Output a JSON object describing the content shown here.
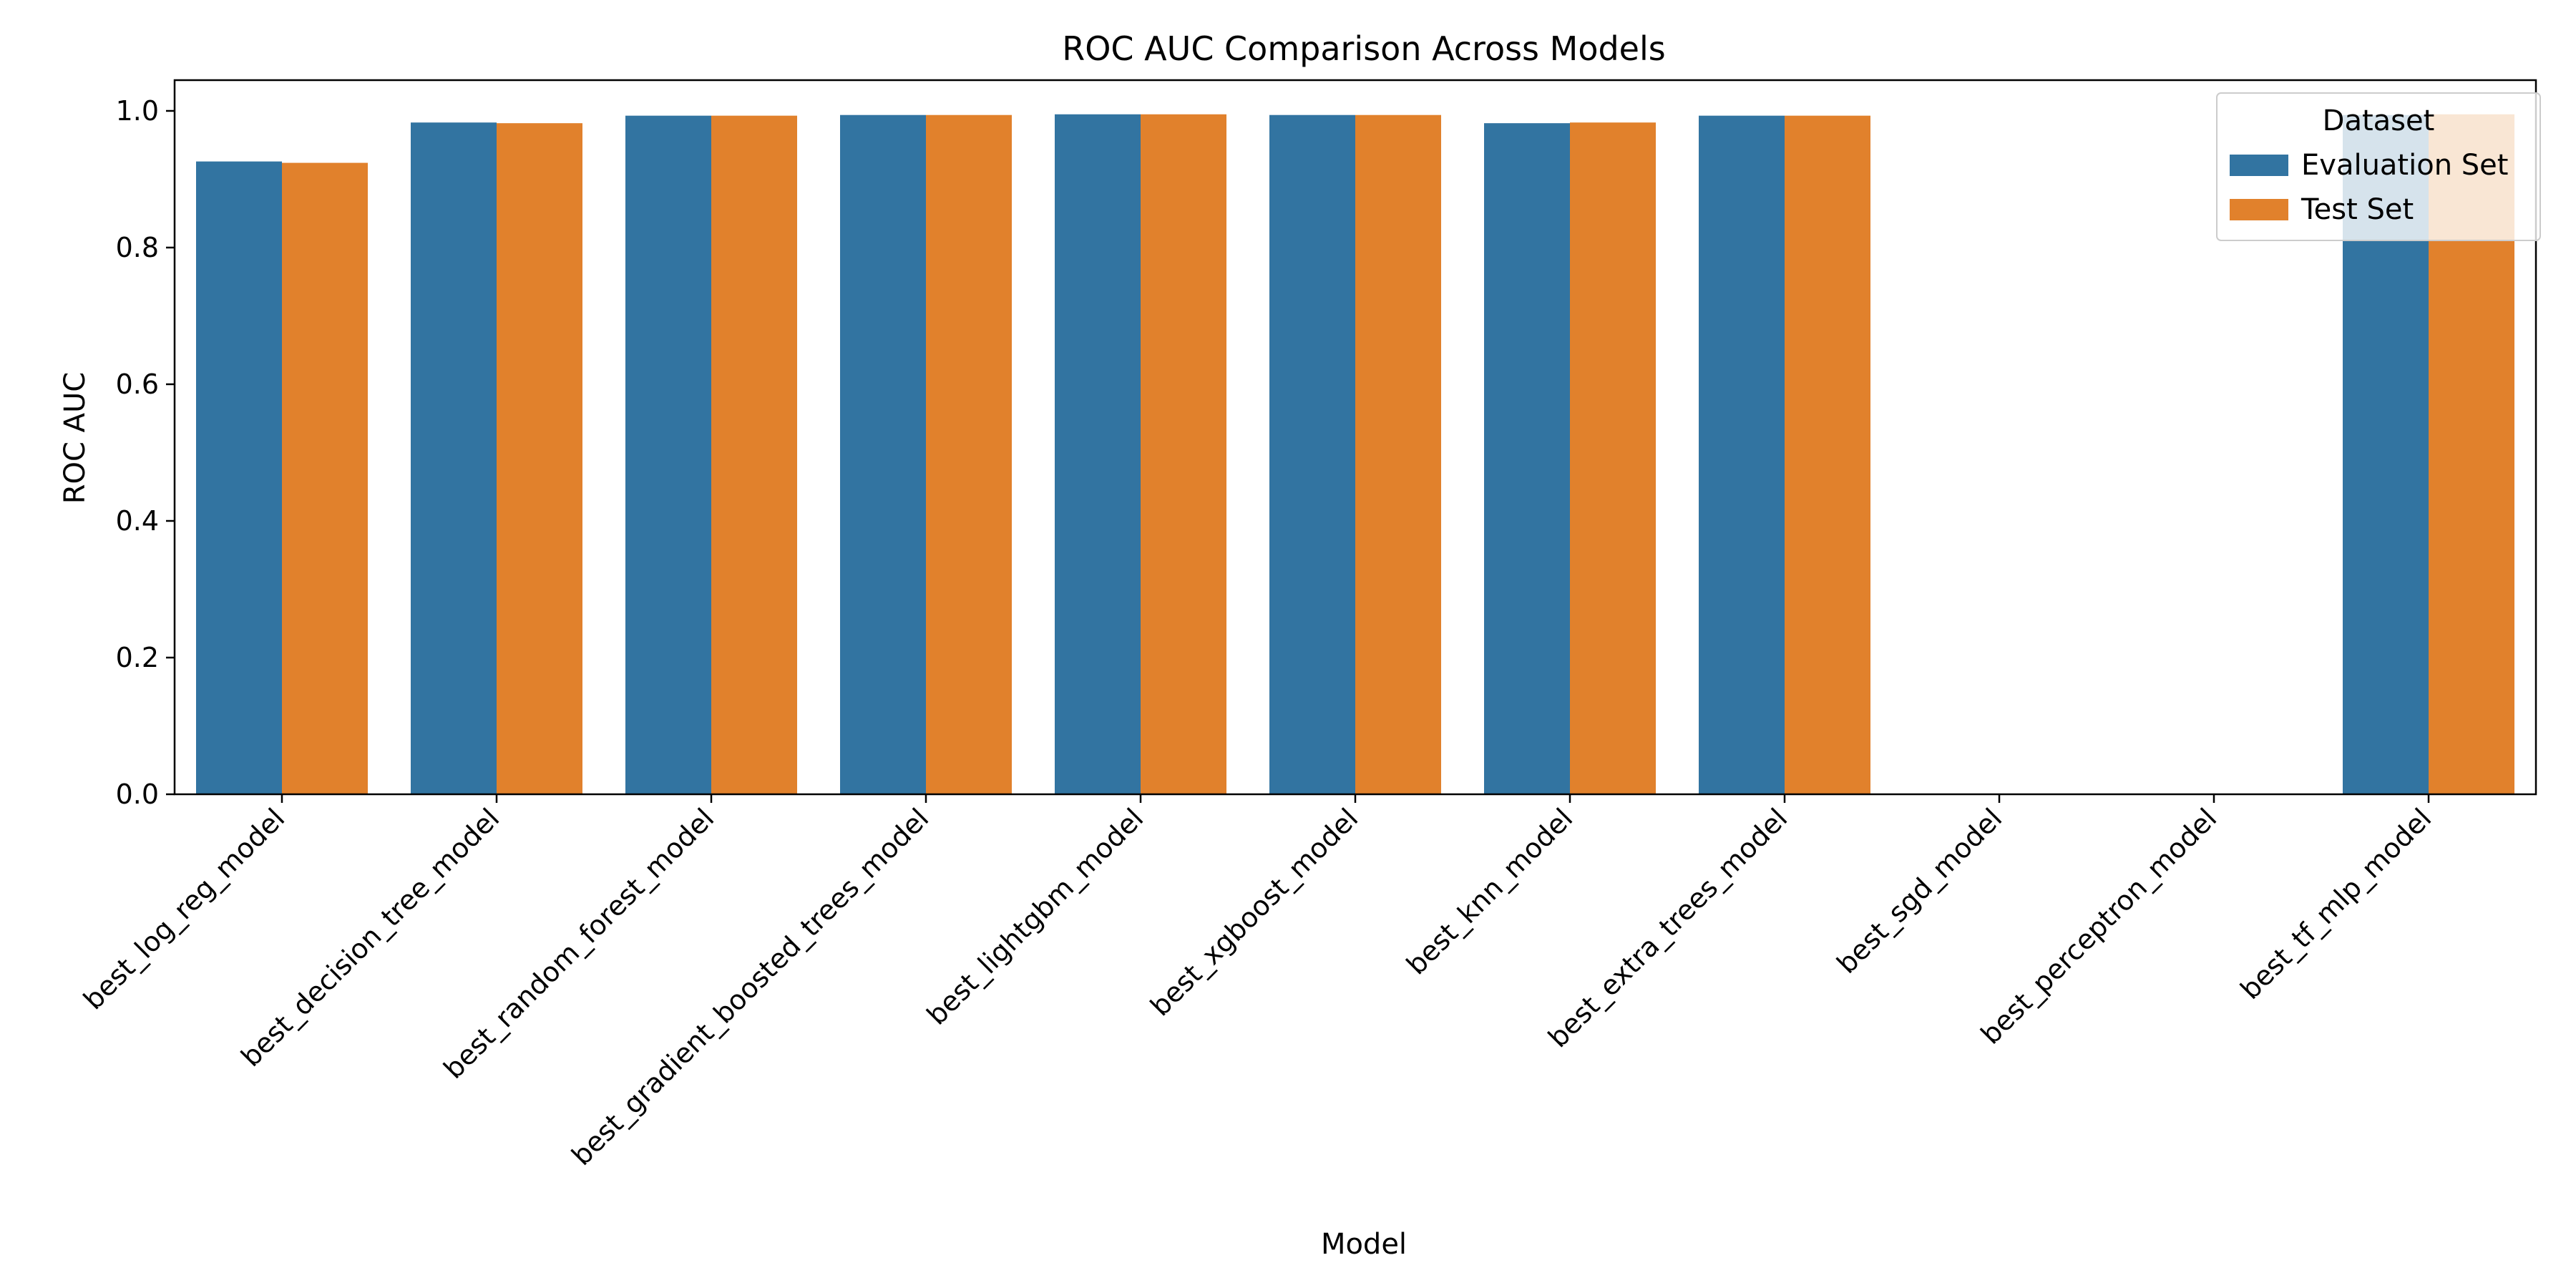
{
  "chart_data": {
    "type": "bar",
    "title": "ROC AUC Comparison Across Models",
    "xlabel": "Model",
    "ylabel": "ROC AUC",
    "ylim": [
      0,
      1.045
    ],
    "yticks": [
      "0.0",
      "0.2",
      "0.4",
      "0.6",
      "0.8",
      "1.0"
    ],
    "grid": false,
    "categories": [
      "best_log_reg_model",
      "best_decision_tree_model",
      "best_random_forest_model",
      "best_gradient_boosted_trees_model",
      "best_lightgbm_model",
      "best_xgboost_model",
      "best_knn_model",
      "best_extra_trees_model",
      "best_sgd_model",
      "best_perceptron_model",
      "best_tf_mlp_model"
    ],
    "series": [
      {
        "name": "Evaluation Set",
        "color": "#3274a1",
        "values": [
          0.926,
          0.983,
          0.993,
          0.994,
          0.995,
          0.994,
          0.982,
          0.993,
          0,
          0,
          0.994
        ]
      },
      {
        "name": "Test Set",
        "color": "#e1812c",
        "values": [
          0.924,
          0.982,
          0.993,
          0.994,
          0.995,
          0.994,
          0.983,
          0.993,
          0,
          0,
          0.995
        ]
      }
    ],
    "legend": {
      "title": "Dataset",
      "position": "top-right"
    }
  }
}
